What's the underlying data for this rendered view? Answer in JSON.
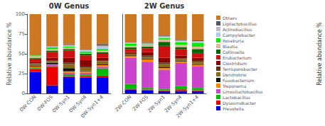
{
  "chart_data": [
    {
      "type": "bar",
      "title": "0W Genus",
      "ylabel": "Relative abundance %",
      "stacked": true,
      "grid": false,
      "categories": [
        "0W-CON",
        "0W-FOS",
        "0W-Syn1",
        "0W-Syn4",
        "0W-Syn1+4"
      ],
      "ylim": [
        0,
        100
      ],
      "yticks": [
        0,
        25,
        50,
        75,
        100
      ],
      "series": [
        {
          "name": "Prevotella",
          "color": "#0000EE",
          "values": [
            27,
            10.2041,
            21,
            20,
            20.4082
          ]
        },
        {
          "name": "Dysosmobacter",
          "color": "#EE0000",
          "values": [
            4,
            23.4694,
            1,
            2,
            2.0408
          ]
        },
        {
          "name": "Lactobacillus",
          "color": "#00BB00",
          "values": [
            1,
            1.0204,
            2,
            2,
            9.1837
          ]
        },
        {
          "name": "Limosilactobacillus",
          "color": "#CC44CC",
          "values": [
            1,
            1.0204,
            2,
            2,
            2.0408
          ]
        },
        {
          "name": "Treponema",
          "color": "#FF8800",
          "values": [
            1,
            1.0204,
            2,
            2,
            2.0408
          ]
        },
        {
          "name": "Fusobacterium",
          "color": "#111111",
          "values": [
            1,
            2.0408,
            4,
            1,
            1.0204
          ]
        },
        {
          "name": "Dendrobrio",
          "color": "#8B6914",
          "values": [
            2,
            2.0408,
            5,
            4,
            4.0816
          ]
        },
        {
          "name": "Terrisporobacter",
          "color": "#5C3317",
          "values": [
            1,
            1.0204,
            2,
            1,
            1.0204
          ]
        },
        {
          "name": "Clostridium",
          "color": "#880000",
          "values": [
            2,
            3.0612,
            6,
            8,
            3.0612
          ]
        },
        {
          "name": "Erubacterium",
          "color": "#CC1111",
          "values": [
            4,
            7.1429,
            9,
            6,
            5.102
          ]
        },
        {
          "name": "Collinsella",
          "color": "#006600",
          "values": [
            1,
            2.0408,
            2,
            2,
            2.0408
          ]
        },
        {
          "name": "Blautia",
          "color": "#DDBB99",
          "values": [
            2,
            2.0408,
            2,
            1,
            2.0408
          ]
        },
        {
          "name": "Roseburia",
          "color": "#00EE00",
          "values": [
            1,
            2.0408,
            1,
            2,
            2.0408
          ]
        },
        {
          "name": "Campylobacter",
          "color": "#AACCEE",
          "values": [
            0,
            1.0204,
            1,
            1,
            2.0408
          ]
        },
        {
          "name": "Actinobacillus",
          "color": "#BBBBCC",
          "values": [
            0,
            0,
            1,
            1,
            2.0408
          ]
        },
        {
          "name": "Ligilactobacillus",
          "color": "#555566",
          "values": [
            0,
            0,
            1,
            1,
            2.0408
          ]
        },
        {
          "name": "Others",
          "color": "#CC7722",
          "values": [
            52,
            40.8163,
            38,
            44,
            37.7551
          ]
        }
      ]
    },
    {
      "type": "bar",
      "title": "2W Genus",
      "ylabel": "Relative abundance %",
      "stacked": true,
      "grid": false,
      "tick_labels": "x",
      "legend": "right",
      "categories": [
        "2W-CON",
        "2W-FOS",
        "2W-Syn1",
        "2W-Syn4",
        "2W-Syn1+4"
      ],
      "ylim": [
        0,
        100
      ],
      "yticks": [
        0,
        25,
        50,
        75,
        100
      ],
      "series": [
        {
          "name": "Prevotella",
          "color": "#0000EE",
          "values": [
            5,
            4,
            3,
            3.0303,
            3
          ]
        },
        {
          "name": "Dysosmobacter",
          "color": "#EE0000",
          "values": [
            1,
            1,
            1,
            2.0202,
            1
          ]
        },
        {
          "name": "Lactobacillus",
          "color": "#00BB00",
          "values": [
            6,
            2,
            2,
            4.0404,
            3
          ]
        },
        {
          "name": "Limosilactobacillus",
          "color": "#CC44CC",
          "values": [
            33,
            33,
            24,
            29.2929,
            27
          ]
        },
        {
          "name": "Treponema",
          "color": "#FF8800",
          "values": [
            2,
            3,
            2,
            2.0202,
            2
          ]
        },
        {
          "name": "Fusobacterium",
          "color": "#111111",
          "values": [
            1,
            1,
            1,
            1.0101,
            1
          ]
        },
        {
          "name": "Dendrobrio",
          "color": "#8B6914",
          "values": [
            2,
            2,
            4,
            2.0202,
            3
          ]
        },
        {
          "name": "Terrisporobacter",
          "color": "#5C3317",
          "values": [
            1,
            2,
            2,
            1.0101,
            2
          ]
        },
        {
          "name": "Clostridium",
          "color": "#880000",
          "values": [
            1,
            4,
            6,
            3.0303,
            3
          ]
        },
        {
          "name": "Erubacterium",
          "color": "#CC1111",
          "values": [
            4,
            5,
            15,
            8.0808,
            6
          ]
        },
        {
          "name": "Collinsella",
          "color": "#006600",
          "values": [
            2,
            2,
            5,
            3.0303,
            5
          ]
        },
        {
          "name": "Blautia",
          "color": "#DDBB99",
          "values": [
            2,
            2,
            3,
            3.0303,
            3
          ]
        },
        {
          "name": "Roseburia",
          "color": "#00EE00",
          "values": [
            3,
            1,
            2,
            3.0303,
            5
          ]
        },
        {
          "name": "Campylobacter",
          "color": "#AACCEE",
          "values": [
            1,
            1,
            1,
            1.0101,
            1
          ]
        },
        {
          "name": "Actinobacillus",
          "color": "#BBBBCC",
          "values": [
            0,
            0,
            1,
            1.0101,
            1
          ]
        },
        {
          "name": "Ligilactobacillus",
          "color": "#555566",
          "values": [
            0,
            1,
            1,
            1.0101,
            1
          ]
        },
        {
          "name": "Others",
          "color": "#CC7722",
          "values": [
            36,
            36,
            27,
            32.3232,
            33
          ]
        }
      ]
    }
  ]
}
